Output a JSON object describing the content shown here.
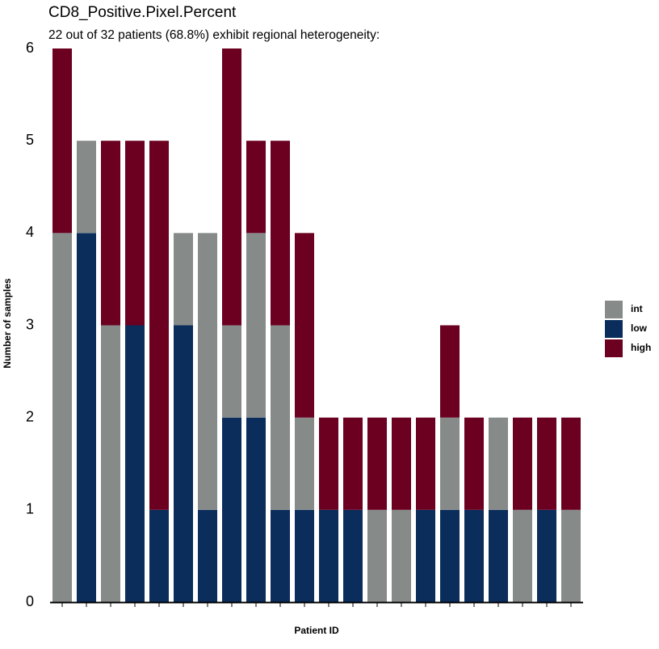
{
  "chart_data": {
    "type": "stacked_bar",
    "title": "CD8_Positive.Pixel.Percent",
    "subtitle": "22 out of 32 patients (68.8%) exhibit regional heterogeneity:",
    "x_label": "Patient ID",
    "y_label": "Number of samples",
    "categories": [
      null,
      null,
      null,
      null,
      null,
      null,
      null,
      null,
      null,
      null,
      null,
      null,
      null,
      null,
      null,
      null,
      null,
      null,
      null,
      null,
      null,
      null
    ],
    "series": [
      {
        "name": "int",
        "color": "#868b8a",
        "values": [
          4,
          1,
          3,
          0,
          0,
          1,
          3,
          1,
          2,
          2,
          1,
          0,
          0,
          1,
          1,
          0,
          1,
          0,
          1,
          1,
          0,
          1
        ]
      },
      {
        "name": "low",
        "color": "#0a2d5c",
        "values": [
          0,
          4,
          0,
          3,
          1,
          3,
          1,
          2,
          2,
          1,
          1,
          1,
          1,
          0,
          0,
          1,
          1,
          1,
          1,
          0,
          1,
          0
        ]
      },
      {
        "name": "high",
        "color": "#6b0020",
        "values": [
          2,
          0,
          2,
          2,
          4,
          0,
          0,
          3,
          1,
          2,
          2,
          1,
          1,
          1,
          1,
          1,
          1,
          1,
          0,
          1,
          1,
          1
        ]
      }
    ],
    "ylim": [
      0,
      6
    ],
    "yticks": [
      0,
      1,
      2,
      3,
      4,
      5,
      6
    ],
    "grid": false,
    "legend": "right"
  }
}
